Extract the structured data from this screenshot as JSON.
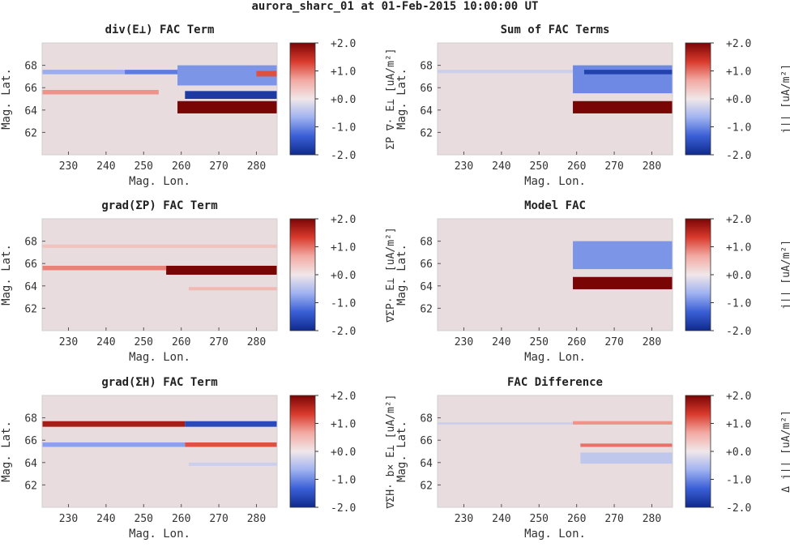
{
  "figure_title": "aurora_sharc_01 at 01-Feb-2015 10:00:00 UT",
  "colors": {
    "plot_background": "#e9dcdf",
    "frame": "#cfcfcf",
    "colormap_stops": [
      "#0f2a8c",
      "#3a5fd6",
      "#9fb2f0",
      "#f1e7e9",
      "#f2a9a2",
      "#d93a2c",
      "#7a0505"
    ]
  },
  "chart_data": [
    {
      "type": "heatmap",
      "title": "div(E⊥) FAC Term",
      "xlabel": "Mag. Lon.",
      "ylabel": "Mag. Lat.",
      "xlim": [
        223,
        285.5
      ],
      "ylim": [
        60,
        70
      ],
      "xticks": [
        "230",
        "240",
        "250",
        "260",
        "270",
        "280"
      ],
      "yticks": [
        "62",
        "64",
        "66",
        "68"
      ],
      "colorbar": {
        "label": "ΣP ∇· E⊥ [uA/m²]",
        "ticks": [
          "+2.0",
          "+1.0",
          "+0.0",
          "-1.0",
          "-2.0"
        ],
        "clim": [
          -2,
          2
        ]
      },
      "features": [
        {
          "lon": [
            223,
            245
          ],
          "lat": [
            67.2,
            67.6
          ],
          "value": -0.7,
          "note": "thin blue streak"
        },
        {
          "lon": [
            245,
            259
          ],
          "lat": [
            67.2,
            67.6
          ],
          "value": -1.1
        },
        {
          "lon": [
            259,
            285.5
          ],
          "lat": [
            66.2,
            68.0
          ],
          "value": -0.9
        },
        {
          "lon": [
            261,
            285.5
          ],
          "lat": [
            65.0,
            65.7
          ],
          "value": -1.8
        },
        {
          "lon": [
            259,
            285.5
          ],
          "lat": [
            63.7,
            64.8
          ],
          "value": 2.0
        },
        {
          "lon": [
            223,
            254
          ],
          "lat": [
            65.4,
            65.8
          ],
          "value": 0.8,
          "note": "thin red streak"
        },
        {
          "lon": [
            280,
            285.5
          ],
          "lat": [
            67.0,
            67.5
          ],
          "value": 1.2
        }
      ]
    },
    {
      "type": "heatmap",
      "title": "Sum of FAC Terms",
      "xlabel": "Mag. Lon.",
      "ylabel": "Mag. Lat.",
      "xlim": [
        223,
        285.5
      ],
      "ylim": [
        60,
        70
      ],
      "xticks": [
        "230",
        "240",
        "250",
        "260",
        "270",
        "280"
      ],
      "yticks": [
        "62",
        "64",
        "66",
        "68"
      ],
      "colorbar": {
        "label": "j|| [uA/m²]",
        "ticks": [
          "+2.0",
          "+1.0",
          "+0.0",
          "-1.0",
          "-2.0"
        ],
        "clim": [
          -2,
          2
        ]
      },
      "features": [
        {
          "lon": [
            223,
            259
          ],
          "lat": [
            67.3,
            67.6
          ],
          "value": -0.3
        },
        {
          "lon": [
            259,
            285.5
          ],
          "lat": [
            65.5,
            68.0
          ],
          "value": -1.0
        },
        {
          "lon": [
            262,
            285.5
          ],
          "lat": [
            67.2,
            67.6
          ],
          "value": -1.7
        },
        {
          "lon": [
            259,
            285.5
          ],
          "lat": [
            63.7,
            64.8
          ],
          "value": 2.0
        }
      ]
    },
    {
      "type": "heatmap",
      "title": "grad(ΣP) FAC Term",
      "xlabel": "Mag. Lon.",
      "ylabel": "Mag. Lat.",
      "xlim": [
        223,
        285.5
      ],
      "ylim": [
        60,
        70
      ],
      "xticks": [
        "230",
        "240",
        "250",
        "260",
        "270",
        "280"
      ],
      "yticks": [
        "62",
        "64",
        "66",
        "68"
      ],
      "colorbar": {
        "label": "∇ΣP· E⊥ [uA/m²]",
        "ticks": [
          "+2.0",
          "+1.0",
          "+0.0",
          "-1.0",
          "-2.0"
        ],
        "clim": [
          -2,
          2
        ]
      },
      "features": [
        {
          "lon": [
            223,
            256
          ],
          "lat": [
            65.4,
            65.8
          ],
          "value": 0.9
        },
        {
          "lon": [
            256,
            285.5
          ],
          "lat": [
            65.0,
            65.8
          ],
          "value": 2.0
        },
        {
          "lon": [
            223,
            285.5
          ],
          "lat": [
            67.4,
            67.7
          ],
          "value": 0.4
        },
        {
          "lon": [
            262,
            285.5
          ],
          "lat": [
            63.6,
            63.9
          ],
          "value": 0.5
        }
      ]
    },
    {
      "type": "heatmap",
      "title": "Model FAC",
      "xlabel": "Mag. Lon.",
      "ylabel": "Mag. Lat.",
      "xlim": [
        223,
        285.5
      ],
      "ylim": [
        60,
        70
      ],
      "xticks": [
        "230",
        "240",
        "250",
        "260",
        "270",
        "280"
      ],
      "yticks": [
        "62",
        "64",
        "66",
        "68"
      ],
      "colorbar": {
        "label": "j|| [uA/m²]",
        "ticks": [
          "+2.0",
          "+1.0",
          "+0.0",
          "-1.0",
          "-2.0"
        ],
        "clim": [
          -2,
          2
        ]
      },
      "features": [
        {
          "lon": [
            259,
            285.5
          ],
          "lat": [
            65.5,
            68.0
          ],
          "value": -0.9
        },
        {
          "lon": [
            259,
            285.5
          ],
          "lat": [
            63.7,
            64.8
          ],
          "value": 2.0
        }
      ]
    },
    {
      "type": "heatmap",
      "title": "grad(ΣH) FAC Term",
      "xlabel": "Mag. Lon.",
      "ylabel": "Mag. Lat.",
      "xlim": [
        223,
        285.5
      ],
      "ylim": [
        60,
        70
      ],
      "xticks": [
        "230",
        "240",
        "250",
        "260",
        "270",
        "280"
      ],
      "yticks": [
        "62",
        "64",
        "66",
        "68"
      ],
      "colorbar": {
        "label": "∇ΣH· b× E⊥ [uA/m²]",
        "ticks": [
          "+2.0",
          "+1.0",
          "+0.0",
          "-1.0",
          "-2.0"
        ],
        "clim": [
          -2,
          2
        ]
      },
      "features": [
        {
          "lon": [
            223,
            261
          ],
          "lat": [
            67.2,
            67.7
          ],
          "value": 1.7
        },
        {
          "lon": [
            261,
            285.5
          ],
          "lat": [
            67.2,
            67.7
          ],
          "value": -1.6
        },
        {
          "lon": [
            223,
            261
          ],
          "lat": [
            65.4,
            65.8
          ],
          "value": -0.8
        },
        {
          "lon": [
            261,
            285.5
          ],
          "lat": [
            65.4,
            65.8
          ],
          "value": 1.2
        },
        {
          "lon": [
            262,
            285.5
          ],
          "lat": [
            63.7,
            64.0
          ],
          "value": -0.3
        }
      ]
    },
    {
      "type": "heatmap",
      "title": "FAC Difference",
      "xlabel": "Mag. Lon.",
      "ylabel": "Mag. Lat.",
      "xlim": [
        223,
        285.5
      ],
      "ylim": [
        60,
        70
      ],
      "xticks": [
        "230",
        "240",
        "250",
        "260",
        "270",
        "280"
      ],
      "yticks": [
        "62",
        "64",
        "66",
        "68"
      ],
      "colorbar": {
        "label": "Δ j|| [uA/m²]",
        "ticks": [
          "+2.0",
          "+1.0",
          "+0.0",
          "-1.0",
          "-2.0"
        ],
        "clim": [
          -2,
          2
        ]
      },
      "features": [
        {
          "lon": [
            223,
            285.5
          ],
          "lat": [
            67.4,
            67.6
          ],
          "value": -0.3
        },
        {
          "lon": [
            259,
            285.5
          ],
          "lat": [
            67.4,
            67.7
          ],
          "value": 0.8
        },
        {
          "lon": [
            261,
            285.5
          ],
          "lat": [
            65.4,
            65.7
          ],
          "value": 1.0
        },
        {
          "lon": [
            261,
            285.5
          ],
          "lat": [
            63.9,
            64.9
          ],
          "value": -0.4
        }
      ]
    }
  ]
}
